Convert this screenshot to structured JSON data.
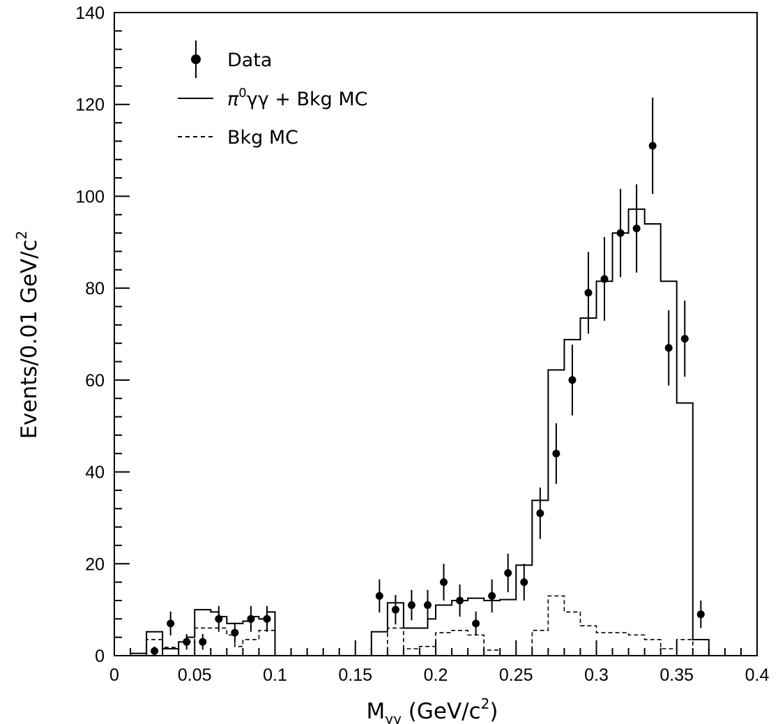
{
  "chart_data": {
    "type": "histogram",
    "xlabel": {
      "main": "M",
      "sub": "γγ",
      "unit_pre": " (GeV/c",
      "unit_sup": "2",
      "unit_post": ")"
    },
    "ylabel": {
      "main": "Events/0.01 GeV/c",
      "sup": "2"
    },
    "xlim": [
      0,
      0.4
    ],
    "ylim": [
      0,
      140
    ],
    "xticks": [
      0,
      0.05,
      0.1,
      0.15,
      0.2,
      0.25,
      0.3,
      0.35,
      0.4
    ],
    "xtick_labels": [
      "0",
      "0.05",
      "0.1",
      "0.15",
      "0.2",
      "0.25",
      "0.3",
      "0.35",
      "0.4"
    ],
    "yticks": [
      0,
      20,
      40,
      60,
      80,
      100,
      120,
      140
    ],
    "ytick_labels": [
      "0",
      "20",
      "40",
      "60",
      "80",
      "100",
      "120",
      "140"
    ],
    "bin_width": 0.01,
    "legend": {
      "placement": "top-left",
      "entries": [
        {
          "key": "data",
          "label": "Data"
        },
        {
          "key": "signal_bkg",
          "label_parts": [
            "π",
            "0",
            "γγ + Bkg MC"
          ]
        },
        {
          "key": "bkg",
          "label": "Bkg MC"
        }
      ]
    },
    "signal_bkg_mc": {
      "bin_edges": [
        0.01,
        0.02,
        0.025,
        0.03,
        0.04,
        0.045,
        0.05,
        0.055,
        0.06,
        0.065,
        0.07,
        0.08,
        0.085,
        0.09,
        0.095,
        0.1,
        0.11,
        0.12,
        0.13,
        0.14,
        0.15,
        0.16,
        0.17,
        0.175,
        0.18,
        0.19,
        0.195,
        0.2,
        0.21,
        0.22,
        0.23,
        0.24,
        0.25,
        0.26,
        0.27,
        0.28,
        0.29,
        0.3,
        0.31,
        0.32,
        0.33,
        0.34,
        0.35,
        0.36,
        0.37
      ],
      "values": [
        0.5,
        5.2,
        5.2,
        1.5,
        3.0,
        4.0,
        10.0,
        10.0,
        9.5,
        8.5,
        7.0,
        7.5,
        8.5,
        8.0,
        9.5,
        0,
        0,
        0,
        0,
        0,
        0,
        5.2,
        11.5,
        11.5,
        6.0,
        6.0,
        8.0,
        11.0,
        12.0,
        12.5,
        12.0,
        12.2,
        19.7,
        33.8,
        62.2,
        68.8,
        73.5,
        81.5,
        92.0,
        97.2,
        94.0,
        81.5,
        55.0,
        3.5
      ]
    },
    "bkg_mc": {
      "bin_edges": [
        0.02,
        0.03,
        0.04,
        0.05,
        0.06,
        0.07,
        0.075,
        0.08,
        0.09,
        0.1,
        0.17,
        0.18,
        0.19,
        0.2,
        0.21,
        0.22,
        0.23,
        0.24,
        0.26,
        0.27,
        0.28,
        0.29,
        0.3,
        0.31,
        0.32,
        0.33,
        0.34,
        0.35,
        0.36
      ],
      "values": [
        3.5,
        1.8,
        3.0,
        6.0,
        6.0,
        4.5,
        2.0,
        3.5,
        5.5,
        0,
        6.0,
        1.5,
        2.0,
        5.0,
        5.5,
        4.5,
        1.2,
        0,
        5.5,
        13.0,
        9.5,
        6.5,
        5.0,
        5.0,
        4.5,
        3.5,
        1.5,
        3.5
      ]
    },
    "data_points": [
      {
        "x": 0.025,
        "y": 1,
        "err": 1
      },
      {
        "x": 0.035,
        "y": 7,
        "err": 2.6
      },
      {
        "x": 0.045,
        "y": 3,
        "err": 1.7
      },
      {
        "x": 0.055,
        "y": 3,
        "err": 1.7
      },
      {
        "x": 0.065,
        "y": 8,
        "err": 2.8
      },
      {
        "x": 0.075,
        "y": 5,
        "err": 2.2
      },
      {
        "x": 0.085,
        "y": 8,
        "err": 2.8
      },
      {
        "x": 0.095,
        "y": 8,
        "err": 2.8
      },
      {
        "x": 0.165,
        "y": 13,
        "err": 3.6
      },
      {
        "x": 0.175,
        "y": 10,
        "err": 3.2
      },
      {
        "x": 0.185,
        "y": 11,
        "err": 3.3
      },
      {
        "x": 0.195,
        "y": 11,
        "err": 3.3
      },
      {
        "x": 0.205,
        "y": 16,
        "err": 4.0
      },
      {
        "x": 0.215,
        "y": 12,
        "err": 3.5
      },
      {
        "x": 0.225,
        "y": 7,
        "err": 2.6
      },
      {
        "x": 0.235,
        "y": 13,
        "err": 3.6
      },
      {
        "x": 0.245,
        "y": 18,
        "err": 4.2
      },
      {
        "x": 0.255,
        "y": 16,
        "err": 4.0
      },
      {
        "x": 0.265,
        "y": 31,
        "err": 5.6
      },
      {
        "x": 0.275,
        "y": 44,
        "err": 6.6
      },
      {
        "x": 0.285,
        "y": 60,
        "err": 7.7
      },
      {
        "x": 0.295,
        "y": 79,
        "err": 8.9
      },
      {
        "x": 0.305,
        "y": 82,
        "err": 9.1
      },
      {
        "x": 0.315,
        "y": 92,
        "err": 9.6
      },
      {
        "x": 0.325,
        "y": 93,
        "err": 9.6
      },
      {
        "x": 0.335,
        "y": 111,
        "err": 10.5
      },
      {
        "x": 0.345,
        "y": 67,
        "err": 8.2
      },
      {
        "x": 0.355,
        "y": 69,
        "err": 8.3
      },
      {
        "x": 0.365,
        "y": 9,
        "err": 3.0
      }
    ],
    "colors": {
      "ink": "#000000",
      "background": "#ffffff"
    }
  }
}
